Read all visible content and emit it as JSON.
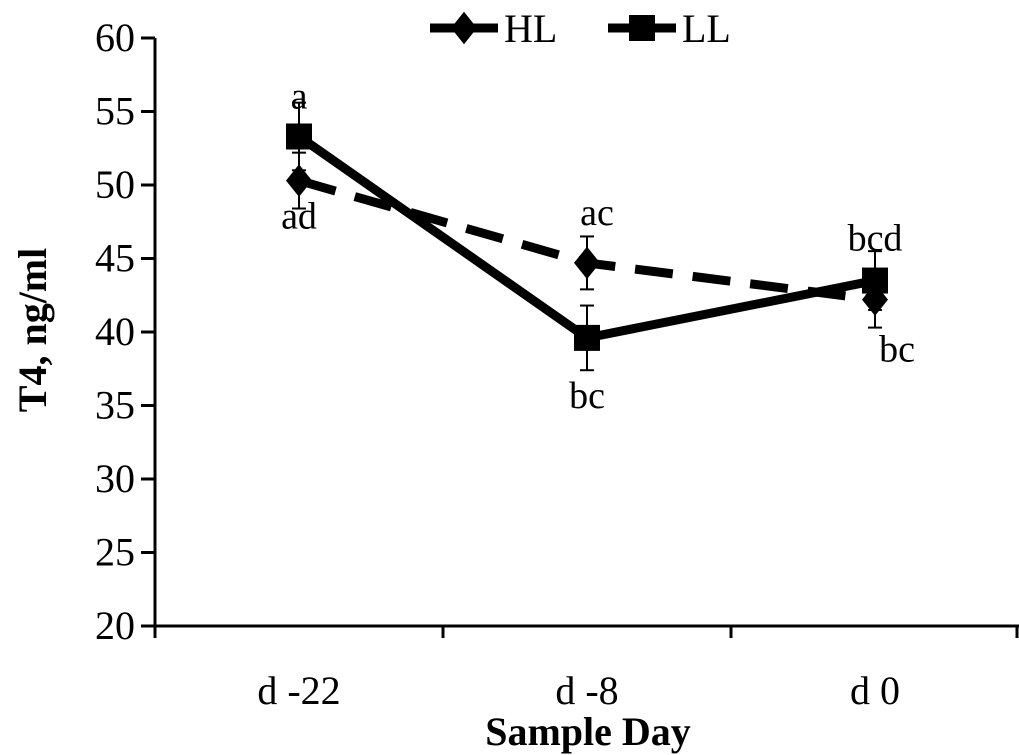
{
  "chart_data": {
    "type": "line",
    "xlabel": "Sample Day",
    "ylabel": "T4, ng/ml",
    "categories": [
      "d -22",
      "d -8",
      "d 0"
    ],
    "ylim": [
      20,
      60
    ],
    "yticks": [
      20,
      25,
      30,
      35,
      40,
      45,
      50,
      55,
      60
    ],
    "grid": false,
    "legend_position": "top-center",
    "series": [
      {
        "name": "HL",
        "marker": "diamond",
        "line_style": "dashed",
        "values": [
          50.3,
          44.7,
          42.2
        ],
        "errors": [
          1.9,
          1.8,
          1.9
        ],
        "labels": [
          "ad",
          "ac",
          "bc"
        ]
      },
      {
        "name": "LL",
        "marker": "square",
        "line_style": "solid",
        "values": [
          53.3,
          39.6,
          43.5
        ],
        "errors": [
          2.3,
          2.2,
          2.0
        ],
        "labels": [
          "a",
          "bc",
          "bcd"
        ]
      }
    ],
    "colors": {
      "line": "#000000",
      "background": "#ffffff"
    }
  }
}
